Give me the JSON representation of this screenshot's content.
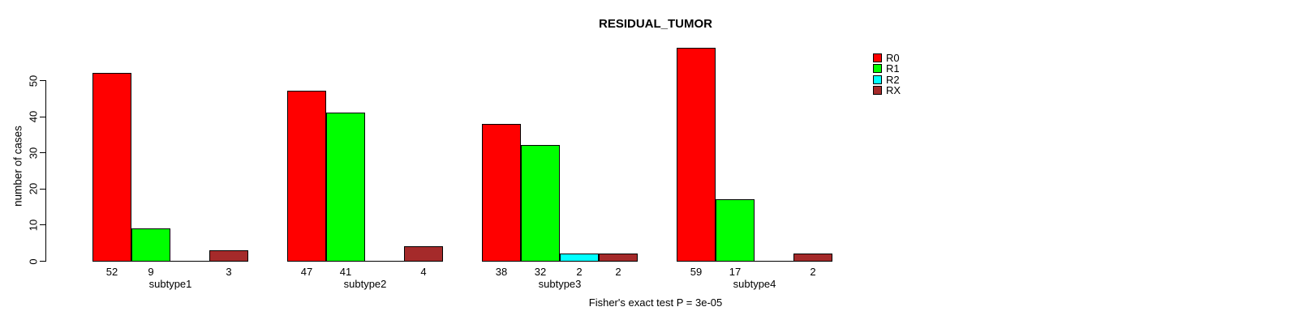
{
  "chart_data": {
    "type": "bar",
    "title": "RESIDUAL_TUMOR",
    "ylabel": "number of cases",
    "xlabel": "",
    "footnote": "Fisher's exact test P = 3e-05",
    "categories": [
      "subtype1",
      "subtype2",
      "subtype3",
      "subtype4"
    ],
    "series": [
      {
        "name": "R0",
        "color": "#FF0000",
        "values": [
          52,
          47,
          38,
          59
        ]
      },
      {
        "name": "R1",
        "color": "#00FF00",
        "values": [
          9,
          41,
          32,
          17
        ]
      },
      {
        "name": "R2",
        "color": "#00FFFF",
        "values": [
          0,
          0,
          2,
          0
        ]
      },
      {
        "name": "RX",
        "color": "#A52A2A",
        "values": [
          3,
          4,
          2,
          2
        ]
      }
    ],
    "bar_value_labels": {
      "subtype1": [
        52,
        9,
        null,
        3
      ],
      "subtype2": [
        47,
        41,
        null,
        4
      ],
      "subtype3": [
        38,
        32,
        2,
        2
      ],
      "subtype4": [
        59,
        17,
        null,
        2
      ]
    },
    "yticks": [
      0,
      10,
      20,
      30,
      40,
      50
    ],
    "ylim": [
      0,
      59
    ],
    "grid": false,
    "legend": {
      "position": "top-right",
      "entries": [
        "R0",
        "R1",
        "R2",
        "RX"
      ]
    },
    "colors": {
      "background": "#FFFFFF",
      "axis": "#000000",
      "bar_border": "#000000",
      "text": "#000000"
    }
  }
}
